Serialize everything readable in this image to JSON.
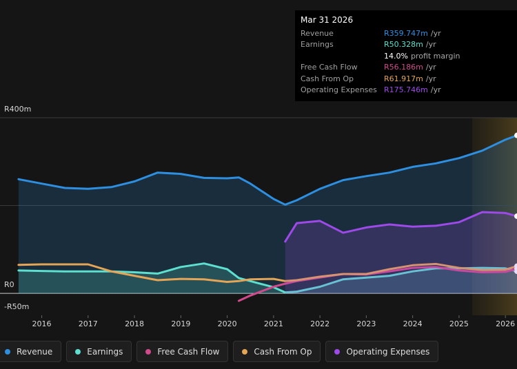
{
  "chart_data": {
    "type": "line",
    "x": [
      2015.5,
      2016,
      2016.5,
      2017,
      2017.5,
      2018,
      2018.5,
      2019,
      2019.5,
      2020,
      2020.25,
      2020.5,
      2021,
      2021.25,
      2021.5,
      2022,
      2022.5,
      2023,
      2023.5,
      2024,
      2024.5,
      2025,
      2025.5,
      2026,
      2026.25
    ],
    "xlim": [
      2015.1,
      2026.25
    ],
    "xticks": [
      2016,
      2017,
      2018,
      2019,
      2020,
      2021,
      2022,
      2023,
      2024,
      2025,
      2026
    ],
    "ylim": [
      -50,
      400
    ],
    "yticks": [
      {
        "value": 400,
        "label": "R400m"
      },
      {
        "value": 200,
        "label": null
      },
      {
        "value": 0,
        "label": "R0"
      },
      {
        "value": -50,
        "label": "-R50m"
      }
    ],
    "grid": true,
    "series": [
      {
        "name": "Revenue",
        "color": "#2e8fe0",
        "fill": true,
        "values": [
          260,
          250,
          240,
          238,
          242,
          255,
          275,
          272,
          263,
          262,
          264,
          250,
          215,
          202,
          212,
          238,
          258,
          267,
          275,
          288,
          296,
          308,
          325,
          350,
          359.747
        ]
      },
      {
        "name": "Earnings",
        "color": "#5de0cf",
        "fill": true,
        "values": [
          52,
          51,
          50,
          50,
          50,
          48,
          45,
          60,
          68,
          55,
          35,
          28,
          14,
          2,
          4,
          15,
          32,
          36,
          40,
          50,
          57,
          57,
          58,
          57,
          50.328
        ]
      },
      {
        "name": "Free Cash Flow",
        "color": "#d24a8c",
        "fill": false,
        "values": [
          null,
          null,
          null,
          null,
          null,
          null,
          null,
          null,
          null,
          null,
          -17,
          -5,
          15,
          22,
          28,
          36,
          44,
          43,
          50,
          58,
          60,
          52,
          48,
          49,
          56.186
        ]
      },
      {
        "name": "Cash From Op",
        "color": "#e4a556",
        "fill": false,
        "values": [
          65,
          66,
          66,
          66,
          50,
          40,
          30,
          33,
          32,
          26,
          28,
          32,
          33,
          28,
          30,
          38,
          44,
          44,
          55,
          64,
          67,
          58,
          53,
          54,
          61.917
        ]
      },
      {
        "name": "Operating Expenses",
        "color": "#9d4ae8",
        "fill": true,
        "values": [
          null,
          null,
          null,
          null,
          null,
          null,
          null,
          null,
          null,
          null,
          null,
          null,
          null,
          118,
          160,
          165,
          138,
          150,
          157,
          152,
          154,
          162,
          185,
          183,
          175.746
        ]
      }
    ],
    "tooltip": {
      "date": "Mar 31 2026",
      "rows": [
        {
          "label": "Revenue",
          "value": "R359.747m",
          "unit": "/yr",
          "color": "#2e8fe0"
        },
        {
          "label": "Earnings",
          "value": "R50.328m",
          "unit": "/yr",
          "color": "#5de0cf"
        },
        {
          "label": null,
          "value": "14.0%",
          "unit": "profit margin",
          "color": "#ffffff"
        },
        {
          "label": "Free Cash Flow",
          "value": "R56.186m",
          "unit": "/yr",
          "color": "#d24a8c"
        },
        {
          "label": "Cash From Op",
          "value": "R61.917m",
          "unit": "/yr",
          "color": "#e4a556"
        },
        {
          "label": "Operating Expenses",
          "value": "R175.746m",
          "unit": "/yr",
          "color": "#9d4ae8"
        }
      ]
    }
  }
}
